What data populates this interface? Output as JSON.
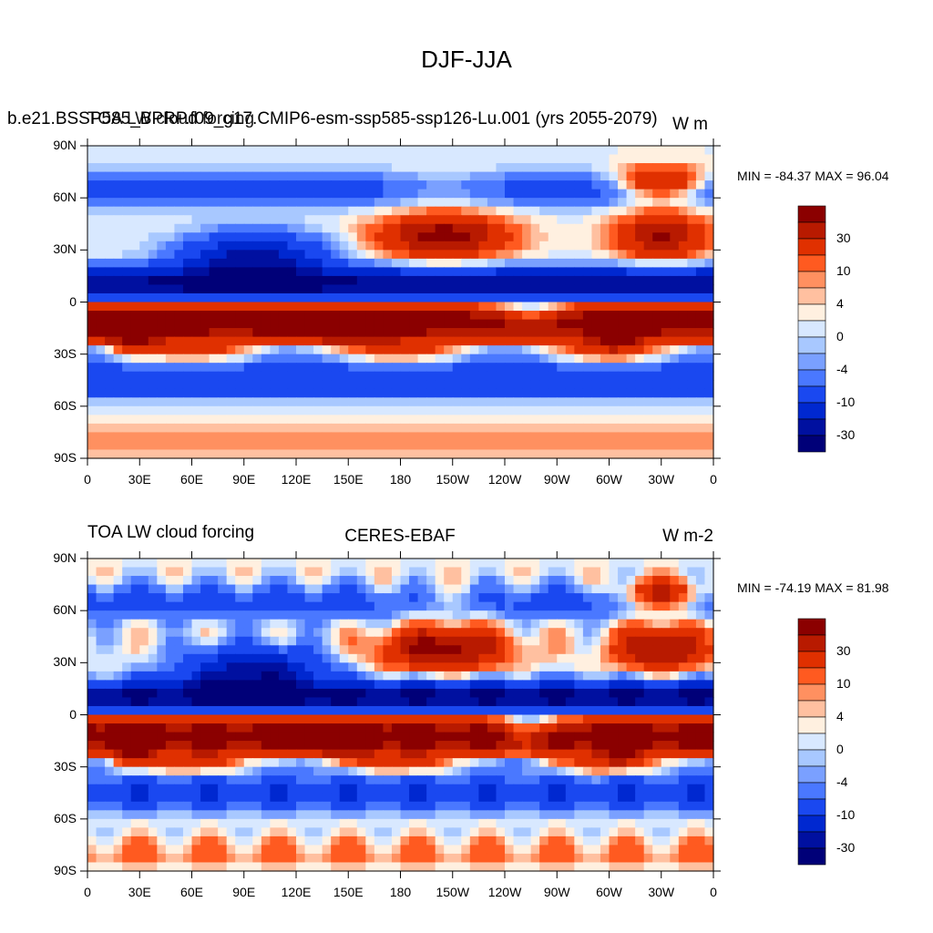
{
  "figure": {
    "title": "DJF-JJA"
  },
  "chart_data": [
    {
      "type": "heatmap",
      "title_left": "b.e21.BSSP585_BPRP.f09_g17.CMIP6-esm-ssp585-ssp126-Lu.001 (yrs 2055-2079)",
      "title_left_overlay": "TOA LW cloud forcing",
      "title_right": "W m",
      "stats": "MIN = -84.37 MAX =  96.04",
      "min": -84.37,
      "max": 96.04,
      "y_ticks": [
        "90N",
        "60N",
        "30N",
        "0",
        "30S",
        "60S",
        "90S"
      ],
      "x_ticks": [
        "0",
        "30E",
        "60E",
        "90E",
        "120E",
        "150E",
        "180",
        "150W",
        "120W",
        "90W",
        "60W",
        "30W",
        "0"
      ],
      "xlim": [
        0,
        360
      ],
      "ylim": [
        -90,
        90
      ],
      "colorbar_labels": [
        "30",
        "10",
        "4",
        "0",
        "-4",
        "-10",
        "-30"
      ]
    },
    {
      "type": "heatmap",
      "title_left": "TOA LW cloud forcing",
      "title_center": "CERES-EBAF",
      "title_right": "W m-2",
      "stats": "MIN = -74.19 MAX =  81.98",
      "min": -74.19,
      "max": 81.98,
      "y_ticks": [
        "90N",
        "60N",
        "30N",
        "0",
        "30S",
        "60S",
        "90S"
      ],
      "x_ticks": [
        "0",
        "30E",
        "60E",
        "90E",
        "120E",
        "150E",
        "180",
        "150W",
        "120W",
        "90W",
        "60W",
        "30W",
        "0"
      ],
      "xlim": [
        0,
        360
      ],
      "ylim": [
        -90,
        90
      ],
      "colorbar_labels": [
        "30",
        "10",
        "4",
        "0",
        "-4",
        "-10",
        "-30"
      ]
    }
  ],
  "colorbar_colors": [
    "#8b0000",
    "#b81a00",
    "#e03000",
    "#ff5a20",
    "#ff9060",
    "#ffc0a0",
    "#fff0e0",
    "#d8e8ff",
    "#a8c8ff",
    "#7aa0ff",
    "#4a78ff",
    "#1a48f0",
    "#0028d0",
    "#0010a0",
    "#000078"
  ]
}
